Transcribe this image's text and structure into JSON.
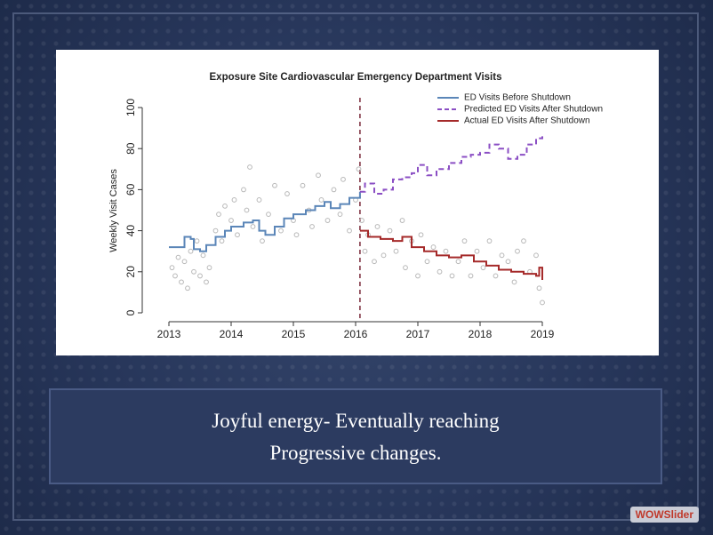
{
  "chart_data": {
    "type": "line",
    "title": "Exposure Site Cardiovascular Emergency Department Visits",
    "ylabel": "Weekly Visit Cases",
    "xlim": [
      2013,
      2019
    ],
    "xticks": [
      2013,
      2014,
      2015,
      2016,
      2017,
      2018,
      2019
    ],
    "ylim": [
      0,
      100
    ],
    "yticks": [
      0,
      20,
      40,
      60,
      80,
      100
    ],
    "shutdown_x": 2016.07,
    "series": [
      {
        "type": "scatter",
        "color": "#b8b8b8",
        "x": [
          2013.05,
          2013.1,
          2013.15,
          2013.2,
          2013.25,
          2013.3,
          2013.35,
          2013.4,
          2013.45,
          2013.5,
          2013.55,
          2013.6,
          2013.65,
          2013.75,
          2013.8,
          2013.85,
          2013.9,
          2014.0,
          2014.05,
          2014.1,
          2014.2,
          2014.25,
          2014.3,
          2014.35,
          2014.45,
          2014.5,
          2014.6,
          2014.7,
          2014.8,
          2014.9,
          2015.0,
          2015.05,
          2015.15,
          2015.25,
          2015.3,
          2015.4,
          2015.45,
          2015.55,
          2015.65,
          2015.75,
          2015.8,
          2015.9,
          2016.0,
          2016.05,
          2016.1,
          2016.15,
          2016.2,
          2016.3,
          2016.35,
          2016.45,
          2016.55,
          2016.65,
          2016.75,
          2016.8,
          2016.9,
          2017.0,
          2017.05,
          2017.15,
          2017.25,
          2017.35,
          2017.45,
          2017.55,
          2017.65,
          2017.75,
          2017.85,
          2017.95,
          2018.05,
          2018.15,
          2018.25,
          2018.35,
          2018.45,
          2018.55,
          2018.6,
          2018.7,
          2018.8,
          2018.9,
          2018.95,
          2019.0
        ],
        "values": [
          22,
          18,
          27,
          15,
          25,
          12,
          30,
          20,
          35,
          18,
          28,
          15,
          22,
          40,
          48,
          35,
          52,
          45,
          55,
          38,
          60,
          50,
          71,
          42,
          55,
          35,
          48,
          62,
          40,
          58,
          45,
          38,
          62,
          50,
          42,
          67,
          55,
          45,
          60,
          48,
          65,
          40,
          55,
          70,
          45,
          30,
          38,
          25,
          42,
          28,
          40,
          30,
          45,
          22,
          35,
          18,
          38,
          25,
          32,
          20,
          30,
          18,
          25,
          35,
          18,
          30,
          22,
          35,
          18,
          28,
          25,
          15,
          30,
          35,
          20,
          28,
          12,
          5
        ]
      },
      {
        "type": "step",
        "name": "ED Visits Before Shutdown",
        "color": "#5b86b8",
        "dash": false,
        "x": [
          2013.0,
          2013.2,
          2013.25,
          2013.35,
          2013.4,
          2013.5,
          2013.6,
          2013.75,
          2013.9,
          2014.0,
          2014.2,
          2014.35,
          2014.45,
          2014.55,
          2014.7,
          2014.85,
          2015.0,
          2015.2,
          2015.35,
          2015.5,
          2015.6,
          2015.75,
          2015.9,
          2016.07
        ],
        "values": [
          32,
          32,
          37,
          36,
          31,
          30,
          33,
          37,
          40,
          42,
          44,
          45,
          40,
          38,
          42,
          46,
          48,
          50,
          52,
          54,
          51,
          53,
          56,
          59
        ]
      },
      {
        "type": "step",
        "name": "Predicted ED Visits After Shutdown",
        "color": "#8b4fc4",
        "dash": true,
        "x": [
          2016.07,
          2016.15,
          2016.3,
          2016.45,
          2016.6,
          2016.75,
          2016.9,
          2017.0,
          2017.15,
          2017.3,
          2017.5,
          2017.7,
          2017.85,
          2018.0,
          2018.15,
          2018.3,
          2018.45,
          2018.6,
          2018.75,
          2018.9,
          2019.0
        ],
        "values": [
          59,
          63,
          58,
          60,
          65,
          66,
          68,
          72,
          67,
          70,
          73,
          76,
          77,
          78,
          82,
          80,
          75,
          77,
          82,
          85,
          86
        ]
      },
      {
        "type": "step",
        "name": "Actual ED Visits After Shutdown",
        "color": "#a52a2a",
        "dash": false,
        "x": [
          2016.07,
          2016.2,
          2016.4,
          2016.6,
          2016.75,
          2016.9,
          2017.1,
          2017.3,
          2017.5,
          2017.7,
          2017.9,
          2018.1,
          2018.3,
          2018.5,
          2018.7,
          2018.9,
          2018.95,
          2019.0
        ],
        "values": [
          40,
          37,
          36,
          35,
          37,
          32,
          30,
          28,
          27,
          28,
          25,
          23,
          21,
          20,
          19,
          18,
          22,
          16
        ]
      }
    ]
  },
  "caption": {
    "lines": [
      "Joyful energy-  Eventually reaching",
      "Progressive changes."
    ]
  },
  "badge": "WOWSlider"
}
